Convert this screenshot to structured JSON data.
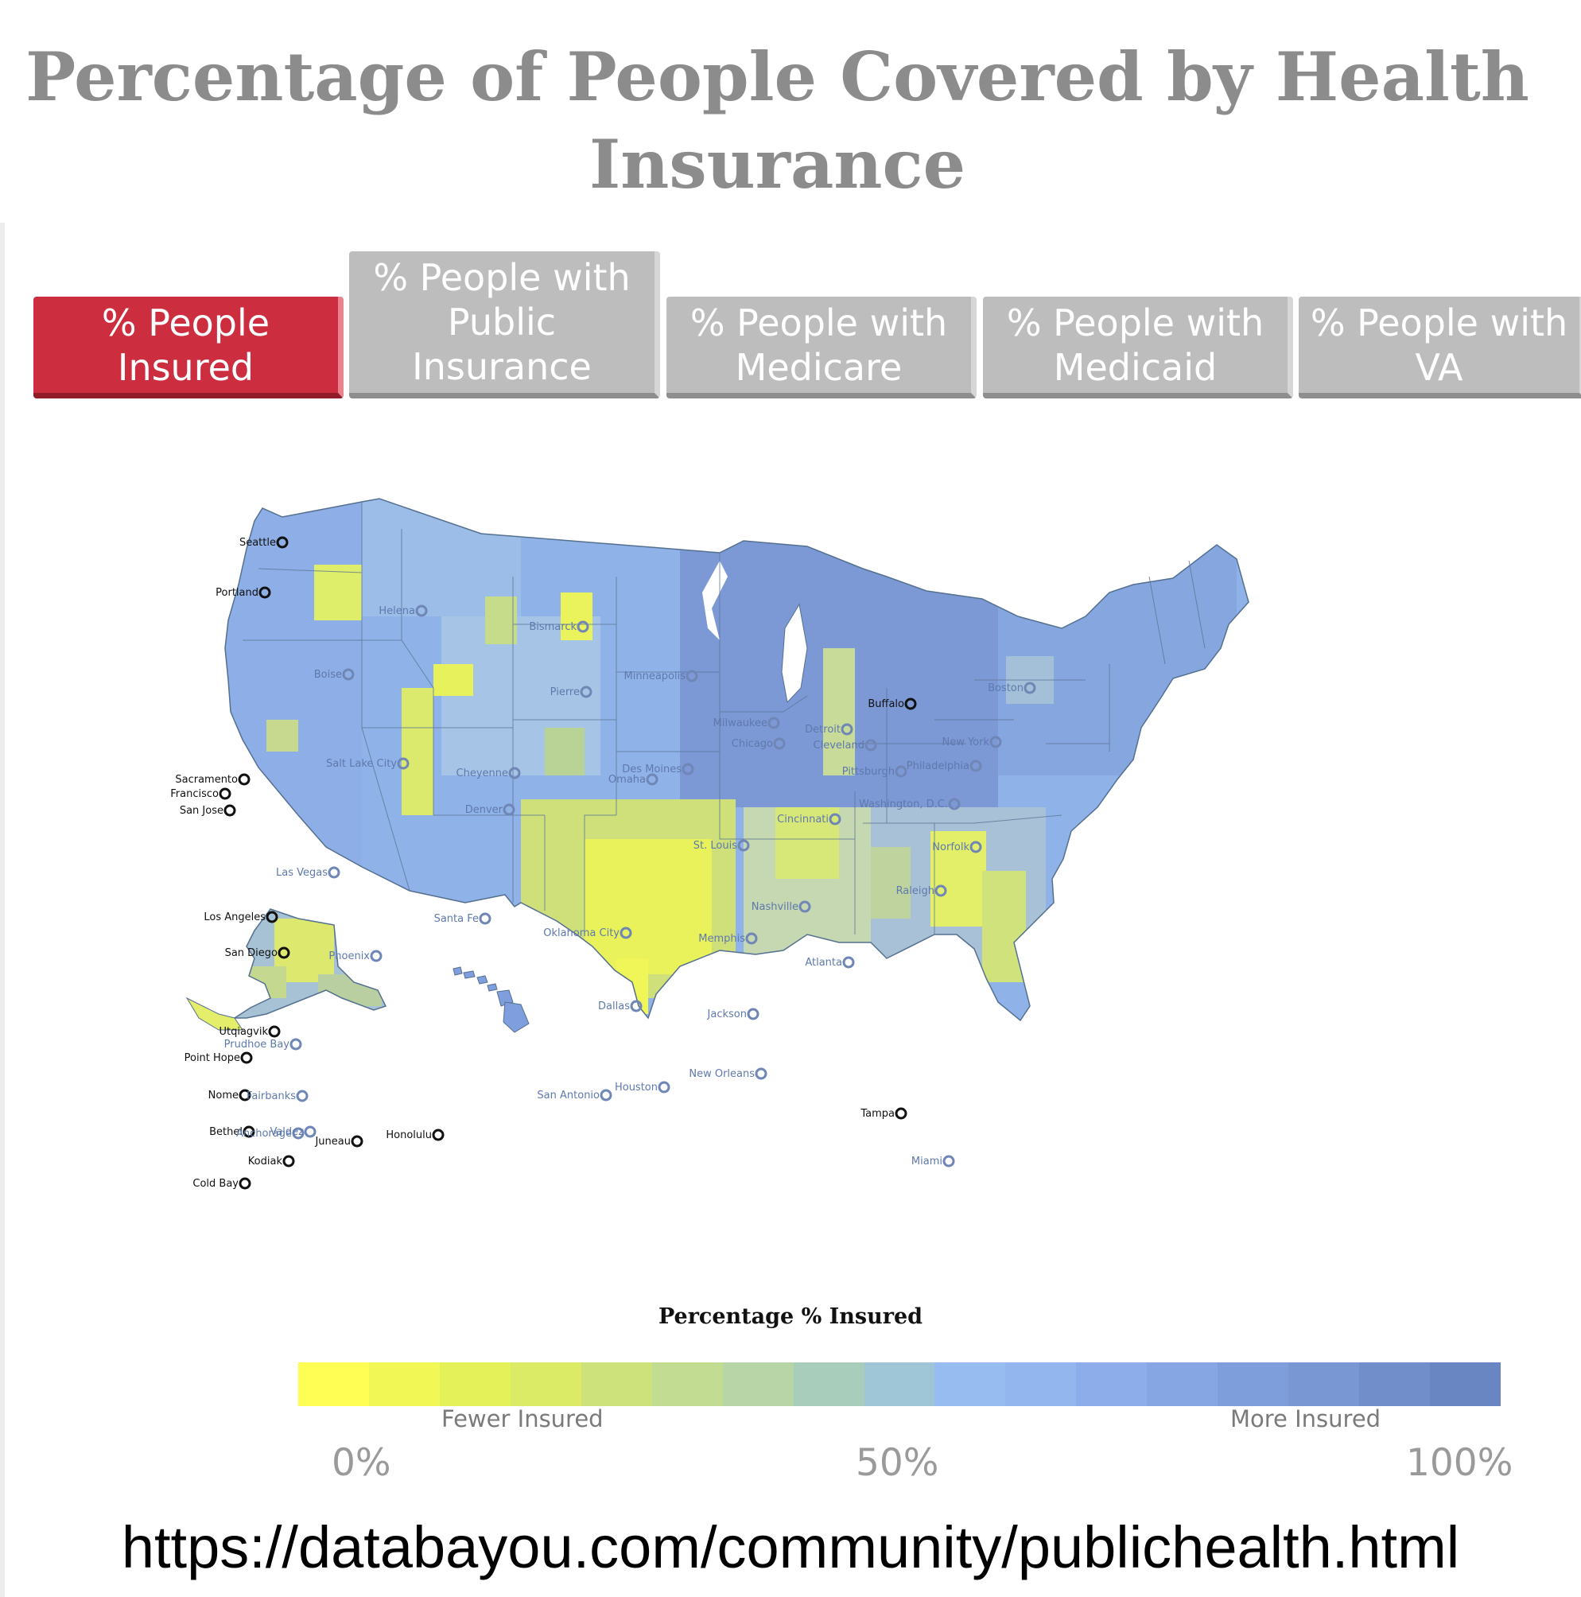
{
  "title": "Percentage of People Covered by Health Insurance",
  "tabs": [
    {
      "label": "% People Insured",
      "active": true
    },
    {
      "label": "% People with Public Insurance",
      "active": false
    },
    {
      "label": "% People with Medicare",
      "active": false
    },
    {
      "label": "% People with Medicaid",
      "active": false
    },
    {
      "label": "% People with VA",
      "active": false
    }
  ],
  "map": {
    "cities_bold": [
      "Seattle",
      "Portland",
      "Sacramento",
      "San Francisco",
      "San Jose",
      "Los Angeles",
      "San Diego",
      "Utqiagvik",
      "Point Hope",
      "Nome",
      "Bethel",
      "Kodiak",
      "Cold Bay",
      "Juneau",
      "Honolulu",
      "Buffalo",
      "Tampa"
    ],
    "cities_faint": [
      "Helena",
      "Bismarck",
      "Boise",
      "Pierre",
      "Minneapolis",
      "Salt Lake City",
      "Cheyenne",
      "Denver",
      "Omaha",
      "Des Moines",
      "Milwaukee",
      "Chicago",
      "Detroit",
      "Cleveland",
      "Pittsburgh",
      "Philadelphia",
      "New York",
      "Boston",
      "Washington, D.C.",
      "Norfolk",
      "Raleigh",
      "Cincinnati",
      "St. Louis",
      "Nashville",
      "Memphis",
      "Atlanta",
      "Las Vegas",
      "Phoenix",
      "Santa Fe",
      "Oklahoma City",
      "Dallas",
      "Jackson",
      "New Orleans",
      "Houston",
      "San Antonio",
      "Miami",
      "Prudhoe Bay",
      "Fairbanks",
      "Anchorage",
      "Valdez"
    ]
  },
  "legend": {
    "title": "Percentage % Insured",
    "low_label": "Fewer Insured",
    "high_label": "More Insured",
    "tick_0": "0%",
    "tick_50": "50%",
    "tick_100": "100%",
    "colors": [
      "#fffe55",
      "#f1f856",
      "#e5f159",
      "#dceb66",
      "#cee27c",
      "#c2dc92",
      "#b8d5a7",
      "#a8cdbb",
      "#9fc6d6",
      "#97bcf0",
      "#93b6ee",
      "#8cacea",
      "#85a5e3",
      "#7e9edb",
      "#7897d3",
      "#718ecb",
      "#6a86c2"
    ]
  },
  "url": "https://databayou.com/community/publichealth.html"
}
